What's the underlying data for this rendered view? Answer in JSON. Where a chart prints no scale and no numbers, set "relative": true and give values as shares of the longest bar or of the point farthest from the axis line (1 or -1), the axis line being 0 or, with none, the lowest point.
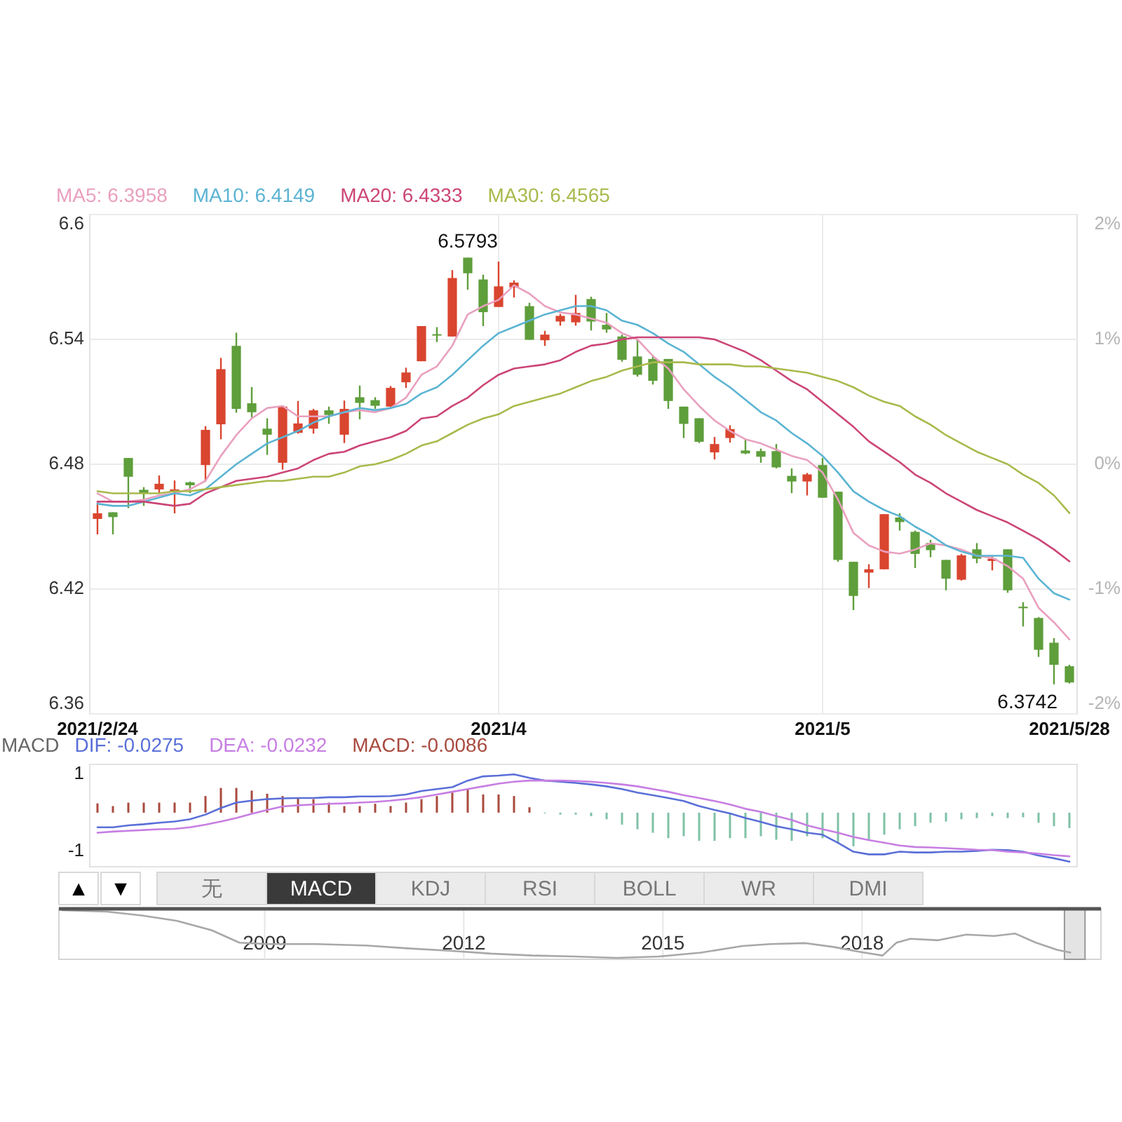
{
  "chart_data": [
    {
      "type": "candlestick",
      "categories": [
        "2021/2/24",
        null,
        null,
        null,
        null,
        null,
        null,
        null,
        null,
        null,
        null,
        null,
        null,
        null,
        null,
        null,
        null,
        null,
        null,
        null,
        null,
        null,
        null,
        null,
        null,
        null,
        "2021/4",
        null,
        null,
        null,
        null,
        null,
        null,
        null,
        null,
        null,
        null,
        null,
        null,
        null,
        null,
        null,
        null,
        null,
        null,
        null,
        null,
        "2021/5",
        null,
        null,
        null,
        null,
        null,
        null,
        null,
        null,
        null,
        null,
        null,
        null,
        null,
        null,
        null,
        "2021/5/28"
      ],
      "ohlc": [
        [
          6.4537,
          6.4616,
          6.4463,
          6.4564
        ],
        [
          6.4569,
          6.4569,
          6.4463,
          6.4546
        ],
        [
          6.483,
          6.483,
          6.4589,
          6.474
        ],
        [
          6.4677,
          6.469,
          6.46,
          6.4659
        ],
        [
          6.4679,
          6.4746,
          6.4661,
          6.4706
        ],
        [
          6.4668,
          6.4722,
          6.4564,
          6.4679
        ],
        [
          6.4713,
          6.4717,
          6.4661,
          6.4699
        ],
        [
          6.4796,
          6.4983,
          6.4717,
          6.4965
        ],
        [
          6.4992,
          6.5311,
          6.492,
          6.5257
        ],
        [
          6.5369,
          6.5432,
          6.5048,
          6.5066
        ],
        [
          6.5093,
          6.5171,
          6.5025,
          6.505
        ],
        [
          6.4971,
          6.5021,
          6.4845,
          6.4942
        ],
        [
          6.4807,
          6.5081,
          6.4774,
          6.5077
        ],
        [
          6.4951,
          6.5104,
          6.4947,
          6.4996
        ],
        [
          6.4971,
          6.5066,
          6.4947,
          6.5059
        ],
        [
          6.5059,
          6.5077,
          6.4994,
          6.5037
        ],
        [
          6.4942,
          6.5106,
          6.4902,
          6.5066
        ],
        [
          6.5122,
          6.5178,
          6.5016,
          6.5095
        ],
        [
          6.5108,
          6.5122,
          6.5066,
          6.5081
        ],
        [
          6.5077,
          6.5176,
          6.5066,
          6.5167
        ],
        [
          6.5194,
          6.5264,
          6.5167,
          6.5241
        ],
        [
          6.5295,
          6.5464,
          6.5295,
          6.5464
        ],
        [
          6.5425,
          6.5459,
          6.5387,
          6.5419
        ],
        [
          6.5414,
          6.5733,
          6.5414,
          6.5695
        ],
        [
          6.5793,
          6.5793,
          6.5639,
          6.5718
        ],
        [
          6.5688,
          6.5711,
          6.5464,
          6.5531
        ],
        [
          6.5556,
          6.5774,
          6.5556,
          6.5655
        ],
        [
          6.565,
          6.5684,
          6.5601,
          6.5673
        ],
        [
          6.556,
          6.5576,
          6.5398,
          6.5398
        ],
        [
          6.5396,
          6.5441,
          6.5369,
          6.5423
        ],
        [
          6.5486,
          6.5522,
          6.5466,
          6.5513
        ],
        [
          6.5482,
          6.5614,
          6.5466,
          6.5527
        ],
        [
          6.5594,
          6.5605,
          6.5443,
          6.5486
        ],
        [
          6.547,
          6.5527,
          6.5432,
          6.5448
        ],
        [
          6.5414,
          6.5423,
          6.5293,
          6.5302
        ],
        [
          6.5318,
          6.5398,
          6.5221,
          6.523
        ],
        [
          6.5306,
          6.5324,
          6.5183,
          6.5201
        ],
        [
          6.5306,
          6.5306,
          6.5066,
          6.5104
        ],
        [
          6.5077,
          6.5077,
          6.4926,
          6.4994
        ],
        [
          6.5021,
          6.5021,
          6.4902,
          6.4908
        ],
        [
          6.4857,
          6.4931,
          6.4823,
          6.4897
        ],
        [
          6.4926,
          6.4987,
          6.4904,
          6.4969
        ],
        [
          6.4866,
          6.492,
          6.4848,
          6.4852
        ],
        [
          6.4863,
          6.4875,
          6.4807,
          6.4836
        ],
        [
          6.4863,
          6.4897,
          6.478,
          6.4785
        ],
        [
          6.4744,
          6.478,
          6.4661,
          6.4717
        ],
        [
          6.4717,
          6.4758,
          6.465,
          6.4751
        ],
        [
          6.4796,
          6.483,
          6.4639,
          6.4639
        ],
        [
          6.4668,
          6.4668,
          6.4331,
          6.434
        ],
        [
          6.4331,
          6.4331,
          6.4099,
          6.4167
        ],
        [
          6.4279,
          6.4319,
          6.4205,
          6.4295
        ],
        [
          6.4295,
          6.456,
          6.4295,
          6.456
        ],
        [
          6.4544,
          6.4564,
          6.4481,
          6.4522
        ],
        [
          6.4475,
          6.4481,
          6.4301,
          6.4369
        ],
        [
          6.4421,
          6.4436,
          6.4353,
          6.4387
        ],
        [
          6.434,
          6.434,
          6.4194,
          6.425
        ],
        [
          6.4245,
          6.4369,
          6.4241,
          6.4362
        ],
        [
          6.4391,
          6.4421,
          6.4324,
          6.4346
        ],
        [
          6.4335,
          6.4362,
          6.429,
          6.4346
        ],
        [
          6.4391,
          6.4391,
          6.4182,
          6.4194
        ],
        [
          6.4115,
          6.4137,
          6.402,
          6.4108
        ],
        [
          6.4061,
          6.4065,
          6.3874,
          6.3908
        ],
        [
          6.3942,
          6.3964,
          6.3742,
          6.3836
        ],
        [
          6.3829,
          6.3836,
          6.3746,
          6.3751
        ]
      ],
      "colors": [
        "#d9452f",
        "#5e9e3b",
        "#5e9e3b",
        "#5e9e3b",
        "#d9452f",
        "#d9452f",
        "#5e9e3b",
        "#d9452f",
        "#d9452f",
        "#5e9e3b",
        "#5e9e3b",
        "#5e9e3b",
        "#d9452f",
        "#d9452f",
        "#d9452f",
        "#5e9e3b",
        "#d9452f",
        "#5e9e3b",
        "#5e9e3b",
        "#d9452f",
        "#d9452f",
        "#d9452f",
        "#5e9e3b",
        "#d9452f",
        "#5e9e3b",
        "#5e9e3b",
        "#d9452f",
        "#d9452f",
        "#5e9e3b",
        "#d9452f",
        "#d9452f",
        "#d9452f",
        "#5e9e3b",
        "#5e9e3b",
        "#5e9e3b",
        "#5e9e3b",
        "#5e9e3b",
        "#5e9e3b",
        "#5e9e3b",
        "#5e9e3b",
        "#d9452f",
        "#d9452f",
        "#5e9e3b",
        "#5e9e3b",
        "#5e9e3b",
        "#5e9e3b",
        "#d9452f",
        "#5e9e3b",
        "#5e9e3b",
        "#5e9e3b",
        "#d9452f",
        "#d9452f",
        "#5e9e3b",
        "#5e9e3b",
        "#5e9e3b",
        "#5e9e3b",
        "#d9452f",
        "#5e9e3b",
        "#d9452f",
        "#5e9e3b",
        "#5e9e3b",
        "#5e9e3b",
        "#5e9e3b",
        "#5e9e3b"
      ],
      "series": [
        {
          "name": "MA5: 6.3958",
          "type": "line",
          "color": "#e9a0bf",
          "values": [
            6.466,
            6.462,
            6.462,
            6.463,
            6.465,
            6.466,
            6.468,
            6.472,
            6.484,
            6.494,
            6.502,
            6.507,
            6.508,
            6.503,
            6.503,
            6.503,
            6.505,
            6.506,
            6.505,
            6.507,
            6.512,
            6.523,
            6.527,
            6.537,
            6.552,
            6.556,
            6.559,
            6.566,
            6.562,
            6.556,
            6.553,
            6.552,
            6.55,
            6.548,
            6.543,
            6.54,
            6.532,
            6.526,
            6.516,
            6.508,
            6.501,
            6.496,
            6.492,
            6.49,
            6.487,
            6.484,
            6.482,
            6.476,
            6.463,
            6.447,
            6.441,
            6.438,
            6.437,
            6.439,
            6.442,
            6.441,
            6.439,
            6.436,
            6.435,
            6.431,
            6.425,
            6.411,
            6.404,
            6.3958
          ]
        },
        {
          "name": "MA10: 6.4149",
          "type": "line",
          "color": "#5bb4d3",
          "values": [
            6.461,
            6.46,
            6.46,
            6.462,
            6.464,
            6.466,
            6.465,
            6.468,
            6.474,
            6.48,
            6.485,
            6.49,
            6.493,
            6.496,
            6.5,
            6.503,
            6.505,
            6.507,
            6.506,
            6.507,
            6.509,
            6.514,
            6.517,
            6.523,
            6.53,
            6.537,
            6.543,
            6.546,
            6.549,
            6.552,
            6.554,
            6.556,
            6.556,
            6.554,
            6.549,
            6.547,
            6.543,
            6.538,
            6.534,
            6.528,
            6.522,
            6.517,
            6.511,
            6.505,
            6.501,
            6.495,
            6.49,
            6.484,
            6.476,
            6.467,
            6.462,
            6.458,
            6.455,
            6.45,
            6.446,
            6.441,
            6.438,
            6.436,
            6.436,
            6.436,
            6.435,
            6.425,
            6.418,
            6.4149
          ]
        },
        {
          "name": "MA20: 6.4333",
          "type": "line",
          "color": "#cc4577",
          "values": [
            6.462,
            6.462,
            6.462,
            6.462,
            6.461,
            6.46,
            6.461,
            6.466,
            6.469,
            6.472,
            6.473,
            6.474,
            6.476,
            6.478,
            6.482,
            6.485,
            6.486,
            6.489,
            6.491,
            6.493,
            6.496,
            6.502,
            6.503,
            6.508,
            6.512,
            6.518,
            6.523,
            6.526,
            6.527,
            6.528,
            6.53,
            6.534,
            6.537,
            6.538,
            6.54,
            6.541,
            6.541,
            6.541,
            6.541,
            6.541,
            6.54,
            6.537,
            6.534,
            6.53,
            6.525,
            6.52,
            6.516,
            6.51,
            6.504,
            6.498,
            6.491,
            6.486,
            6.481,
            6.475,
            6.471,
            6.466,
            6.462,
            6.458,
            6.455,
            6.452,
            6.448,
            6.444,
            6.439,
            6.4333
          ]
        },
        {
          "name": "MA30: 6.4565",
          "type": "line",
          "color": "#a9b94b",
          "values": [
            6.467,
            6.466,
            6.466,
            6.466,
            6.466,
            6.467,
            6.467,
            6.468,
            6.469,
            6.47,
            6.471,
            6.472,
            6.472,
            6.473,
            6.474,
            6.474,
            6.476,
            6.479,
            6.48,
            6.482,
            6.485,
            6.489,
            6.491,
            6.495,
            6.499,
            6.502,
            6.504,
            6.508,
            6.51,
            6.512,
            6.514,
            6.517,
            6.52,
            6.522,
            6.525,
            6.527,
            6.529,
            6.529,
            6.529,
            6.528,
            6.528,
            6.528,
            6.527,
            6.527,
            6.526,
            6.525,
            6.524,
            6.522,
            6.52,
            6.517,
            6.513,
            6.51,
            6.508,
            6.503,
            6.499,
            6.494,
            6.49,
            6.486,
            6.483,
            6.48,
            6.475,
            6.471,
            6.465,
            6.4565
          ]
        }
      ],
      "ylim": [
        6.36,
        6.6
      ],
      "yticks": [
        6.36,
        6.42,
        6.48,
        6.54,
        6.6
      ],
      "y2lim": [
        -2,
        2
      ],
      "y2ticks": [
        {
          "value": -2,
          "label": "-2%"
        },
        {
          "value": -1,
          "label": "-1%"
        },
        {
          "value": 0,
          "label": "0%"
        },
        {
          "value": 1,
          "label": "1%"
        },
        {
          "value": 2,
          "label": "2%"
        }
      ],
      "grid": true,
      "legend": "top left",
      "annotations": [
        {
          "text": "6.5793",
          "y": 6.5793
        },
        "6.3742"
      ]
    },
    {
      "type": "bar",
      "title": "MACD",
      "categories": [
        null,
        null,
        null,
        null,
        null,
        null,
        null,
        null,
        null,
        null,
        null,
        null,
        null,
        null,
        null,
        null,
        null,
        null,
        null,
        null,
        null,
        null,
        null,
        null,
        null,
        null,
        null,
        null,
        null,
        null,
        null,
        null,
        null,
        null,
        null,
        null,
        null,
        null,
        null,
        null,
        null,
        null,
        null,
        null,
        null,
        null,
        null,
        null,
        null,
        null,
        null,
        null,
        null,
        null,
        null,
        null,
        null,
        null,
        null,
        null,
        null,
        null,
        null,
        null
      ],
      "series": [
        {
          "name": "DIF: -0.0275",
          "type": "line",
          "color": "#5a6fd8",
          "values": [
            -0.38,
            -0.38,
            -0.33,
            -0.3,
            -0.26,
            -0.23,
            -0.17,
            -0.05,
            0.12,
            0.26,
            0.31,
            0.35,
            0.37,
            0.38,
            0.38,
            0.4,
            0.4,
            0.42,
            0.42,
            0.43,
            0.47,
            0.56,
            0.61,
            0.66,
            0.83,
            0.94,
            0.96,
            0.99,
            0.9,
            0.83,
            0.8,
            0.77,
            0.73,
            0.68,
            0.61,
            0.52,
            0.45,
            0.38,
            0.3,
            0.17,
            0.07,
            -0.02,
            -0.14,
            -0.24,
            -0.35,
            -0.43,
            -0.52,
            -0.57,
            -0.78,
            -1.01,
            -1.08,
            -1.08,
            -1.01,
            -1.03,
            -1.03,
            -1.01,
            -1.01,
            -0.99,
            -0.96,
            -0.97,
            -1.01,
            -1.11,
            -1.18,
            -1.27
          ]
        },
        {
          "name": "DEA: -0.0232",
          "type": "line",
          "color": "#c77ee2",
          "values": [
            -0.52,
            -0.49,
            -0.47,
            -0.45,
            -0.43,
            -0.42,
            -0.38,
            -0.31,
            -0.23,
            -0.14,
            -0.03,
            0.07,
            0.16,
            0.19,
            0.21,
            0.23,
            0.24,
            0.26,
            0.28,
            0.31,
            0.35,
            0.4,
            0.47,
            0.54,
            0.61,
            0.68,
            0.75,
            0.8,
            0.83,
            0.83,
            0.83,
            0.82,
            0.8,
            0.77,
            0.73,
            0.68,
            0.61,
            0.54,
            0.45,
            0.38,
            0.3,
            0.21,
            0.1,
            0.02,
            -0.09,
            -0.19,
            -0.33,
            -0.43,
            -0.52,
            -0.63,
            -0.71,
            -0.78,
            -0.85,
            -0.89,
            -0.9,
            -0.92,
            -0.94,
            -0.96,
            -0.97,
            -1.01,
            -1.03,
            -1.06,
            -1.1,
            -1.13
          ]
        },
        {
          "name": "MACD: -0.0086",
          "type": "bar",
          "color": "#a84a3e",
          "colors": [
            "#a84a3e",
            "#a84a3e",
            "#a84a3e",
            "#a84a3e",
            "#a84a3e",
            "#a84a3e",
            "#a84a3e",
            "#a84a3e",
            "#a84a3e",
            "#a84a3e",
            "#a84a3e",
            "#a84a3e",
            "#a84a3e",
            "#a84a3e",
            "#a84a3e",
            "#a84a3e",
            "#a84a3e",
            "#a84a3e",
            "#a84a3e",
            "#a84a3e",
            "#a84a3e",
            "#a84a3e",
            "#a84a3e",
            "#a84a3e",
            "#a84a3e",
            "#a84a3e",
            "#a84a3e",
            "#a84a3e",
            "#a84a3e",
            "#7fc1a6",
            "#7fc1a6",
            "#7fc1a6",
            "#7fc1a6",
            "#7fc1a6",
            "#7fc1a6",
            "#7fc1a6",
            "#7fc1a6",
            "#7fc1a6",
            "#7fc1a6",
            "#7fc1a6",
            "#7fc1a6",
            "#7fc1a6",
            "#7fc1a6",
            "#7fc1a6",
            "#7fc1a6",
            "#7fc1a6",
            "#7fc1a6",
            "#7fc1a6",
            "#7fc1a6",
            "#7fc1a6",
            "#7fc1a6",
            "#7fc1a6",
            "#7fc1a6",
            "#7fc1a6",
            "#7fc1a6",
            "#7fc1a6",
            "#7fc1a6",
            "#7fc1a6",
            "#7fc1a6",
            "#7fc1a6",
            "#7fc1a6",
            "#7fc1a6",
            "#7fc1a6",
            "#7fc1a6"
          ],
          "values": [
            0.24,
            0.17,
            0.26,
            0.26,
            0.26,
            0.26,
            0.26,
            0.43,
            0.64,
            0.64,
            0.57,
            0.49,
            0.43,
            0.38,
            0.35,
            0.26,
            0.17,
            0.17,
            0.23,
            0.17,
            0.26,
            0.35,
            0.43,
            0.52,
            0.61,
            0.47,
            0.47,
            0.43,
            0.14,
            -0.02,
            -0.05,
            -0.05,
            -0.09,
            -0.17,
            -0.31,
            -0.43,
            -0.52,
            -0.66,
            -0.61,
            -0.73,
            -0.73,
            -0.66,
            -0.66,
            -0.61,
            -0.7,
            -0.73,
            -0.61,
            -0.66,
            -0.78,
            -0.87,
            -0.7,
            -0.57,
            -0.43,
            -0.35,
            -0.26,
            -0.23,
            -0.17,
            -0.14,
            -0.09,
            -0.14,
            -0.12,
            -0.26,
            -0.35,
            -0.4
          ]
        }
      ],
      "ylim": [
        -1.4,
        1.25
      ],
      "yticks": [
        -1,
        1
      ],
      "legend": "top left"
    },
    {
      "type": "line",
      "relative": true,
      "x": [
        2005.94,
        2006.62,
        2007.15,
        2007.67,
        2008.2,
        2008.62,
        2009.04,
        2009.78,
        2010.52,
        2011.15,
        2011.78,
        2012.41,
        2013.04,
        2013.67,
        2014.31,
        2014.94,
        2015.57,
        2016.2,
        2016.62,
        2017.15,
        2017.57,
        2017.99,
        2018.31,
        2018.52,
        2018.73,
        2019.15,
        2019.57,
        2019.99,
        2020.31,
        2020.62,
        2020.94,
        2021.15
      ],
      "series": [
        {
          "color": "#a8a8a8",
          "values": [
            1.0,
            0.97,
            0.89,
            0.78,
            0.58,
            0.32,
            0.29,
            0.29,
            0.26,
            0.2,
            0.15,
            0.09,
            0.05,
            0.03,
            0,
            0.03,
            0.11,
            0.25,
            0.29,
            0.31,
            0.23,
            0.12,
            0.05,
            0.32,
            0.4,
            0.37,
            0.49,
            0.46,
            0.51,
            0.32,
            0.17,
            0.11
          ]
        }
      ],
      "xlim": [
        2005.9,
        2021.6
      ],
      "xticks": [
        2009,
        2012,
        2015,
        2018
      ],
      "grid": "x",
      "bands": [
        {
          "axis": "x",
          "from": 2021.05,
          "to": 2021.36,
          "color": "#e4e4e4"
        }
      ]
    },
    {
      "type": "other",
      "categories": [
        "▲",
        "▼",
        "无",
        "MACD",
        "KDJ",
        "RSI",
        "BOLL",
        "WR",
        "DMI"
      ],
      "colors": [
        "#ffffff",
        "#ffffff",
        "#ebebeb",
        "#3a3a3a",
        "#ebebeb",
        "#ebebeb",
        "#ebebeb",
        "#ebebeb",
        "#ebebeb"
      ]
    }
  ]
}
